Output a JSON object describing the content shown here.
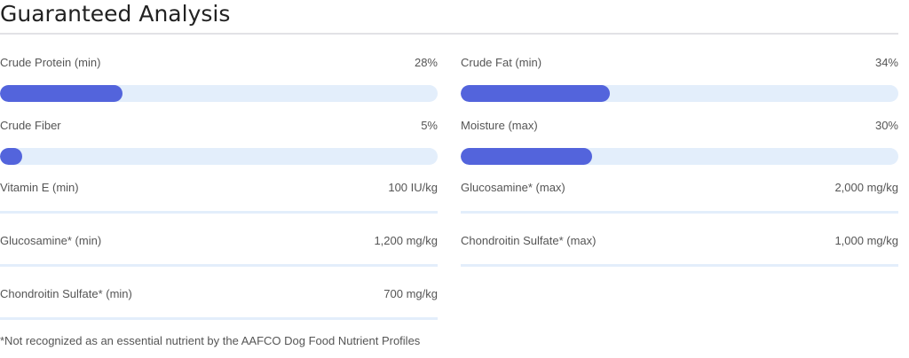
{
  "title": "Guaranteed Analysis",
  "bars": [
    {
      "label": "Crude Protein (min)",
      "value": "28%",
      "percent": 28
    },
    {
      "label": "Crude Fat (min)",
      "value": "34%",
      "percent": 34
    },
    {
      "label": "Crude Fiber",
      "value": "5%",
      "percent": 5
    },
    {
      "label": "Moisture (max)",
      "value": "30%",
      "percent": 30
    }
  ],
  "items": [
    {
      "label": "Vitamin E (min)",
      "value": "100 IU/kg"
    },
    {
      "label": "Glucosamine* (max)",
      "value": "2,000 mg/kg"
    },
    {
      "label": "Glucosamine* (min)",
      "value": "1,200 mg/kg"
    },
    {
      "label": "Chondroitin Sulfate* (max)",
      "value": "1,000 mg/kg"
    },
    {
      "label": "Chondroitin Sulfate* (min)",
      "value": "700 mg/kg"
    }
  ],
  "footnote": "*Not recognized as an essential nutrient by the AAFCO Dog Food Nutrient Profiles",
  "colors": {
    "fill": "#5364dc",
    "track": "#e3eefb"
  }
}
